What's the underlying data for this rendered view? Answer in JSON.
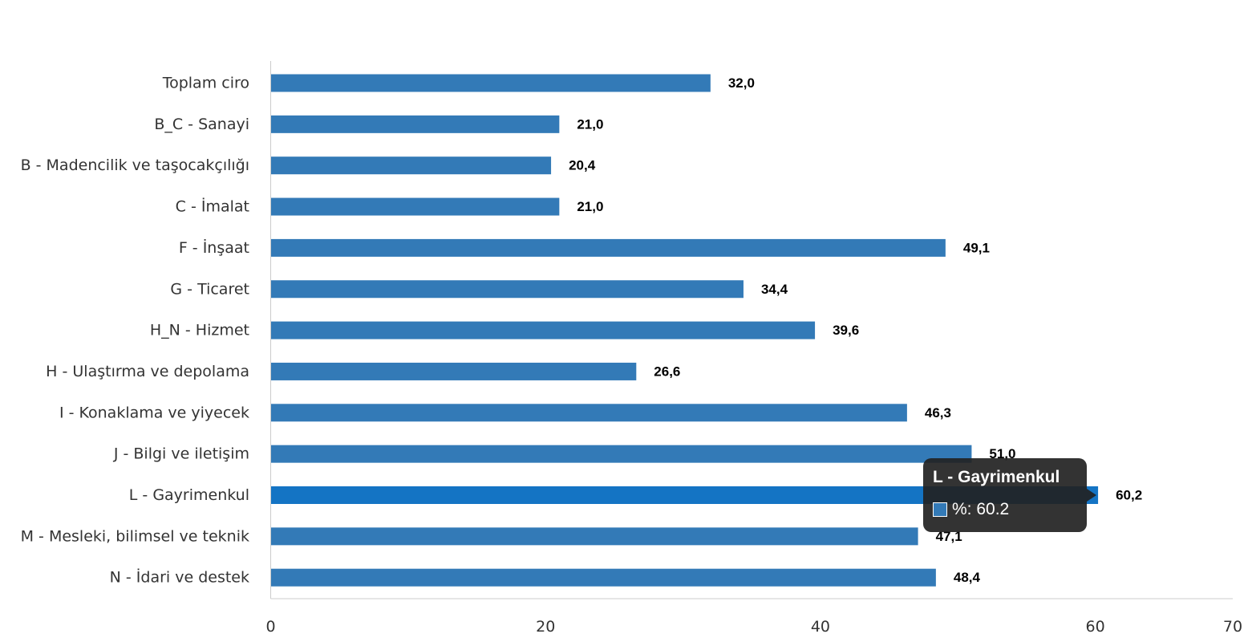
{
  "chart_data": {
    "type": "bar",
    "orientation": "horizontal",
    "categories": [
      "Toplam ciro",
      "B_C - Sanayi",
      "B - Madencilik ve taşocakçılığı",
      "C - İmalat",
      "F - İnşaat",
      "G - Ticaret",
      "H_N - Hizmet",
      "H - Ulaştırma ve depolama",
      "I - Konaklama ve yiyecek",
      "J - Bilgi ve iletişim",
      "L - Gayrimenkul",
      "M - Mesleki, bilimsel ve teknik",
      "N - İdari ve destek"
    ],
    "values": [
      32.0,
      21.0,
      20.4,
      21.0,
      49.1,
      34.4,
      39.6,
      26.6,
      46.3,
      51.0,
      60.2,
      47.1,
      48.4
    ],
    "value_labels": [
      "32,0",
      "21,0",
      "20,4",
      "21,0",
      "49,1",
      "34,4",
      "39,6",
      "26,6",
      "46,3",
      "51,0",
      "60,2",
      "47,1",
      "48,4"
    ],
    "xlim": [
      0,
      70
    ],
    "x_ticks": [
      0,
      20,
      40,
      60,
      70
    ],
    "x_tick_labels": [
      "0",
      "20",
      "40",
      "60",
      "70"
    ],
    "grid": false,
    "colors": {
      "bar": "#337ab7",
      "bar_highlight": "#1474c4"
    },
    "highlighted_category": "L - Gayrimenkul"
  },
  "tooltip": {
    "title": "L - Gayrimenkul",
    "value_text": "%: 60.2",
    "swatch_color": "#337ab7"
  }
}
